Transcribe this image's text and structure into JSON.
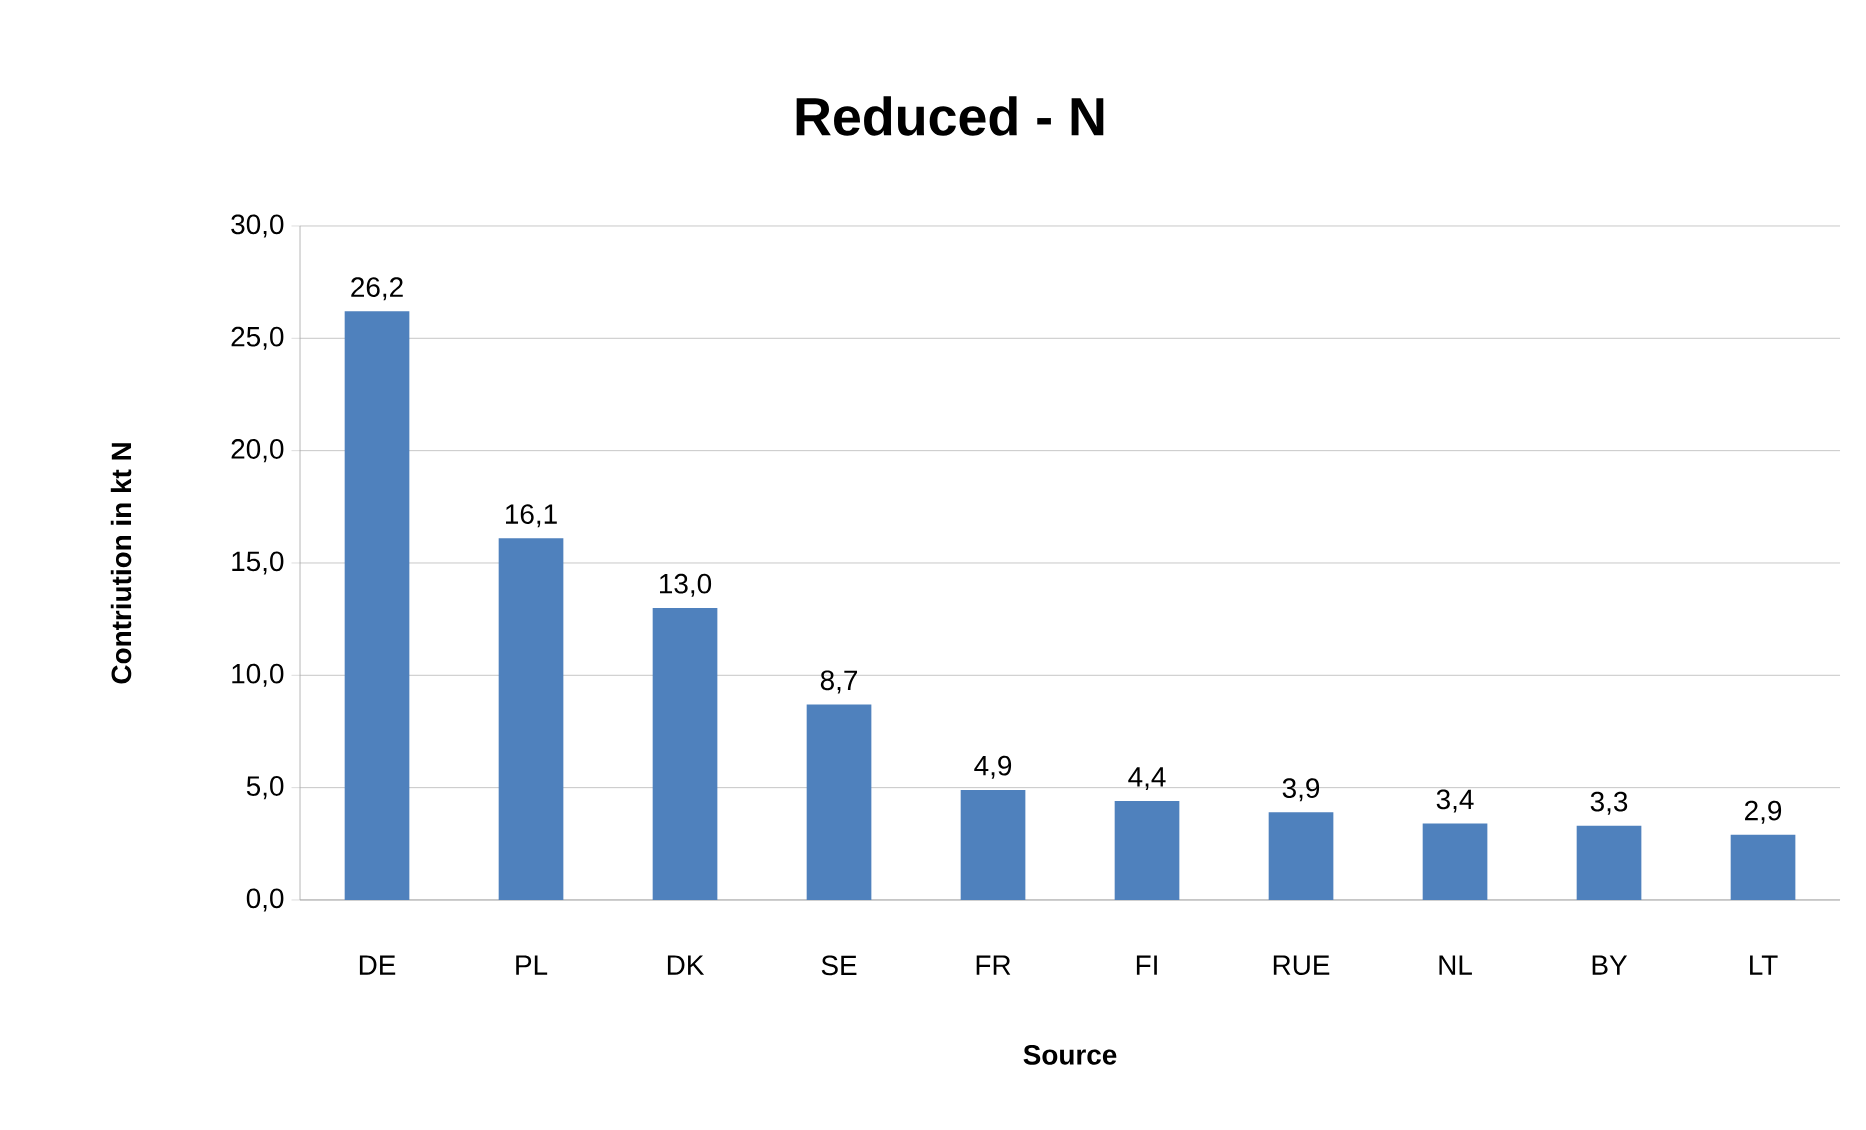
{
  "chart_data": {
    "type": "bar",
    "title": "Reduced - N",
    "xlabel": "Source",
    "ylabel": "Contriution in kt N",
    "categories": [
      "DE",
      "PL",
      "DK",
      "SE",
      "FR",
      "FI",
      "RUE",
      "NL",
      "BY",
      "LT"
    ],
    "values": [
      26.2,
      16.1,
      13.0,
      8.7,
      4.9,
      4.4,
      3.9,
      3.4,
      3.3,
      2.9
    ],
    "value_labels": [
      "26,2",
      "16,1",
      "13,0",
      "8,7",
      "4,9",
      "4,4",
      "3,9",
      "3,4",
      "3,3",
      "2,9"
    ],
    "color": "#4f81bd",
    "ylim": [
      0,
      30
    ],
    "yticks": [
      {
        "value": 0,
        "label": "0,0"
      },
      {
        "value": 5,
        "label": "5,0"
      },
      {
        "value": 10,
        "label": "10,0"
      },
      {
        "value": 15,
        "label": "15,0"
      },
      {
        "value": 20,
        "label": "20,0"
      },
      {
        "value": 25,
        "label": "25,0"
      },
      {
        "value": 30,
        "label": "30,0"
      }
    ],
    "grid": "y"
  }
}
